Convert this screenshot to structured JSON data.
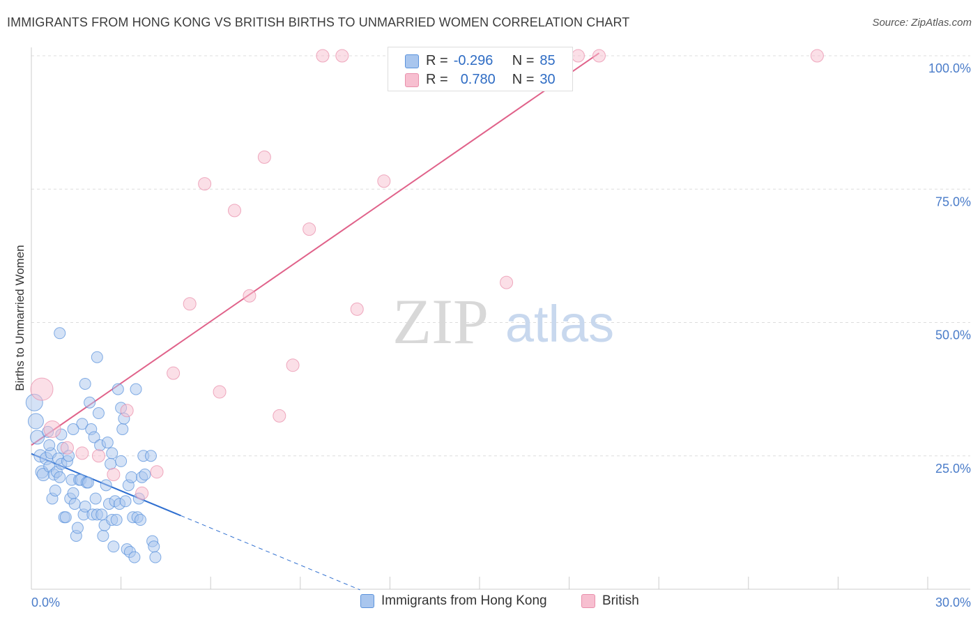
{
  "header": {
    "title": "IMMIGRANTS FROM HONG KONG VS BRITISH BIRTHS TO UNMARRIED WOMEN CORRELATION CHART",
    "source": "Source: ZipAtlas.com"
  },
  "watermark": {
    "zip": "ZIP",
    "atlas": "atlas"
  },
  "stats_box": {
    "rows": [
      {
        "r_label": "R =",
        "r_value": "-0.296",
        "n_label": "N =",
        "n_value": "85"
      },
      {
        "r_label": "R =",
        "r_value": "0.780",
        "n_label": "N =",
        "n_value": "30"
      }
    ]
  },
  "legend": {
    "items": [
      {
        "label": "Immigrants from Hong Kong"
      },
      {
        "label": "British"
      }
    ]
  },
  "colors": {
    "blue_fill": "#a9c6ee",
    "blue_stroke": "#5b93dc",
    "blue_line": "#2f6fd0",
    "pink_fill": "#f7bfd0",
    "pink_stroke": "#e98fab",
    "pink_line": "#e0628a",
    "tick_text": "#4a7cc9",
    "grid": "#dddddd"
  },
  "chart_data": {
    "type": "scatter",
    "title": "IMMIGRANTS FROM HONG KONG VS BRITISH BIRTHS TO UNMARRIED WOMEN CORRELATION CHART",
    "xlabel": "",
    "ylabel": "Births to Unmarried Women",
    "xlim": [
      0,
      30
    ],
    "ylim": [
      0,
      102
    ],
    "x_tick_labels": [
      "0.0%",
      "30.0%"
    ],
    "y_tick_labels": [
      "25.0%",
      "50.0%",
      "75.0%",
      "100.0%"
    ],
    "y_ticks": [
      25,
      50,
      75,
      100
    ],
    "grid": true,
    "legend_position": "bottom",
    "series": [
      {
        "name": "Immigrants from Hong Kong",
        "color": "#a9c6ee",
        "r": -0.296,
        "n": 85,
        "trend": {
          "x0": 0,
          "y0": 25.4,
          "x1": 5.0,
          "y1": 13.8,
          "dash_x1": 11.0
        },
        "points": [
          [
            0.1,
            35.0,
            12
          ],
          [
            0.15,
            31.5,
            11
          ],
          [
            0.2,
            28.5,
            10
          ],
          [
            0.3,
            25.0,
            9
          ],
          [
            0.35,
            22.0,
            9
          ],
          [
            0.4,
            21.5,
            9
          ],
          [
            0.5,
            24.5,
            9
          ],
          [
            0.55,
            29.5,
            8
          ],
          [
            0.6,
            23.0,
            8
          ],
          [
            0.65,
            25.5,
            8
          ],
          [
            0.7,
            17.0,
            8
          ],
          [
            0.75,
            21.5,
            8
          ],
          [
            0.8,
            18.5,
            8
          ],
          [
            0.85,
            22.0,
            8
          ],
          [
            0.9,
            24.5,
            8
          ],
          [
            0.95,
            21.0,
            8
          ],
          [
            1.0,
            23.5,
            8
          ],
          [
            1.05,
            26.5,
            8
          ],
          [
            1.1,
            13.5,
            8
          ],
          [
            1.15,
            13.5,
            8
          ],
          [
            1.2,
            24.0,
            8
          ],
          [
            1.25,
            25.0,
            8
          ],
          [
            1.3,
            17.0,
            8
          ],
          [
            1.35,
            20.5,
            8
          ],
          [
            1.4,
            18.0,
            8
          ],
          [
            1.45,
            16.0,
            8
          ],
          [
            1.5,
            10.0,
            8
          ],
          [
            1.55,
            11.5,
            8
          ],
          [
            1.6,
            20.5,
            8
          ],
          [
            1.65,
            20.5,
            8
          ],
          [
            1.7,
            31.0,
            8
          ],
          [
            1.75,
            14.0,
            8
          ],
          [
            1.8,
            15.5,
            8
          ],
          [
            1.85,
            20.0,
            8
          ],
          [
            1.9,
            20.0,
            8
          ],
          [
            1.95,
            35.0,
            8
          ],
          [
            2.0,
            30.0,
            8
          ],
          [
            2.05,
            14.0,
            8
          ],
          [
            2.1,
            28.5,
            8
          ],
          [
            2.15,
            17.0,
            8
          ],
          [
            2.2,
            14.0,
            8
          ],
          [
            2.25,
            33.0,
            8
          ],
          [
            2.3,
            27.0,
            8
          ],
          [
            2.35,
            14.0,
            8
          ],
          [
            2.4,
            10.0,
            8
          ],
          [
            2.45,
            12.0,
            8
          ],
          [
            2.5,
            19.5,
            8
          ],
          [
            2.55,
            27.5,
            8
          ],
          [
            2.6,
            16.0,
            8
          ],
          [
            2.65,
            23.5,
            8
          ],
          [
            2.7,
            13.0,
            8
          ],
          [
            2.75,
            8.0,
            8
          ],
          [
            2.8,
            16.5,
            8
          ],
          [
            2.85,
            13.0,
            8
          ],
          [
            2.9,
            37.5,
            8
          ],
          [
            2.95,
            16.0,
            8
          ],
          [
            3.0,
            24.0,
            8
          ],
          [
            3.05,
            30.0,
            8
          ],
          [
            3.1,
            32.0,
            8
          ],
          [
            3.15,
            16.5,
            8
          ],
          [
            3.2,
            7.5,
            8
          ],
          [
            3.25,
            19.5,
            8
          ],
          [
            3.3,
            7.0,
            8
          ],
          [
            3.35,
            21.0,
            8
          ],
          [
            3.4,
            13.5,
            8
          ],
          [
            3.45,
            6.0,
            8
          ],
          [
            3.5,
            37.5,
            8
          ],
          [
            3.55,
            13.5,
            8
          ],
          [
            3.6,
            17.0,
            8
          ],
          [
            3.65,
            13.0,
            8
          ],
          [
            3.7,
            21.0,
            8
          ],
          [
            3.75,
            25.0,
            8
          ],
          [
            4.0,
            25.0,
            8
          ],
          [
            4.05,
            9.0,
            8
          ],
          [
            4.1,
            8.0,
            8
          ],
          [
            4.15,
            6.0,
            8
          ],
          [
            0.95,
            48.0,
            8
          ],
          [
            2.2,
            43.5,
            8
          ],
          [
            1.8,
            38.5,
            8
          ],
          [
            3.0,
            34.0,
            8
          ],
          [
            1.4,
            30.0,
            8
          ],
          [
            0.6,
            27.0,
            8
          ],
          [
            1.0,
            29.0,
            8
          ],
          [
            2.7,
            25.5,
            8
          ],
          [
            3.8,
            21.5,
            8
          ]
        ]
      },
      {
        "name": "British",
        "color": "#f7bfd0",
        "r": 0.78,
        "n": 30,
        "trend": {
          "x0": 0,
          "y0": 27.0,
          "x1": 19.0,
          "y1": 100.5
        },
        "points": [
          [
            0.35,
            37.5,
            16
          ],
          [
            0.7,
            30.0,
            12
          ],
          [
            1.2,
            26.5,
            9
          ],
          [
            1.7,
            25.5,
            9
          ],
          [
            2.25,
            25.0,
            9
          ],
          [
            2.75,
            21.5,
            9
          ],
          [
            3.2,
            33.5,
            9
          ],
          [
            3.7,
            18.0,
            9
          ],
          [
            4.2,
            22.0,
            9
          ],
          [
            4.75,
            40.5,
            9
          ],
          [
            5.3,
            53.5,
            9
          ],
          [
            5.8,
            76.0,
            9
          ],
          [
            6.3,
            37.0,
            9
          ],
          [
            6.8,
            71.0,
            9
          ],
          [
            7.3,
            55.0,
            9
          ],
          [
            7.8,
            81.0,
            9
          ],
          [
            8.3,
            32.5,
            9
          ],
          [
            8.75,
            42.0,
            9
          ],
          [
            9.3,
            67.5,
            9
          ],
          [
            9.75,
            100.0,
            9
          ],
          [
            10.4,
            100.0,
            9
          ],
          [
            10.9,
            52.5,
            9
          ],
          [
            11.8,
            76.5,
            9
          ],
          [
            13.05,
            100.0,
            9
          ],
          [
            15.9,
            57.5,
            9
          ],
          [
            18.3,
            100.0,
            9
          ],
          [
            19.0,
            100.0,
            9
          ],
          [
            26.3,
            100.0,
            9
          ]
        ]
      }
    ]
  }
}
